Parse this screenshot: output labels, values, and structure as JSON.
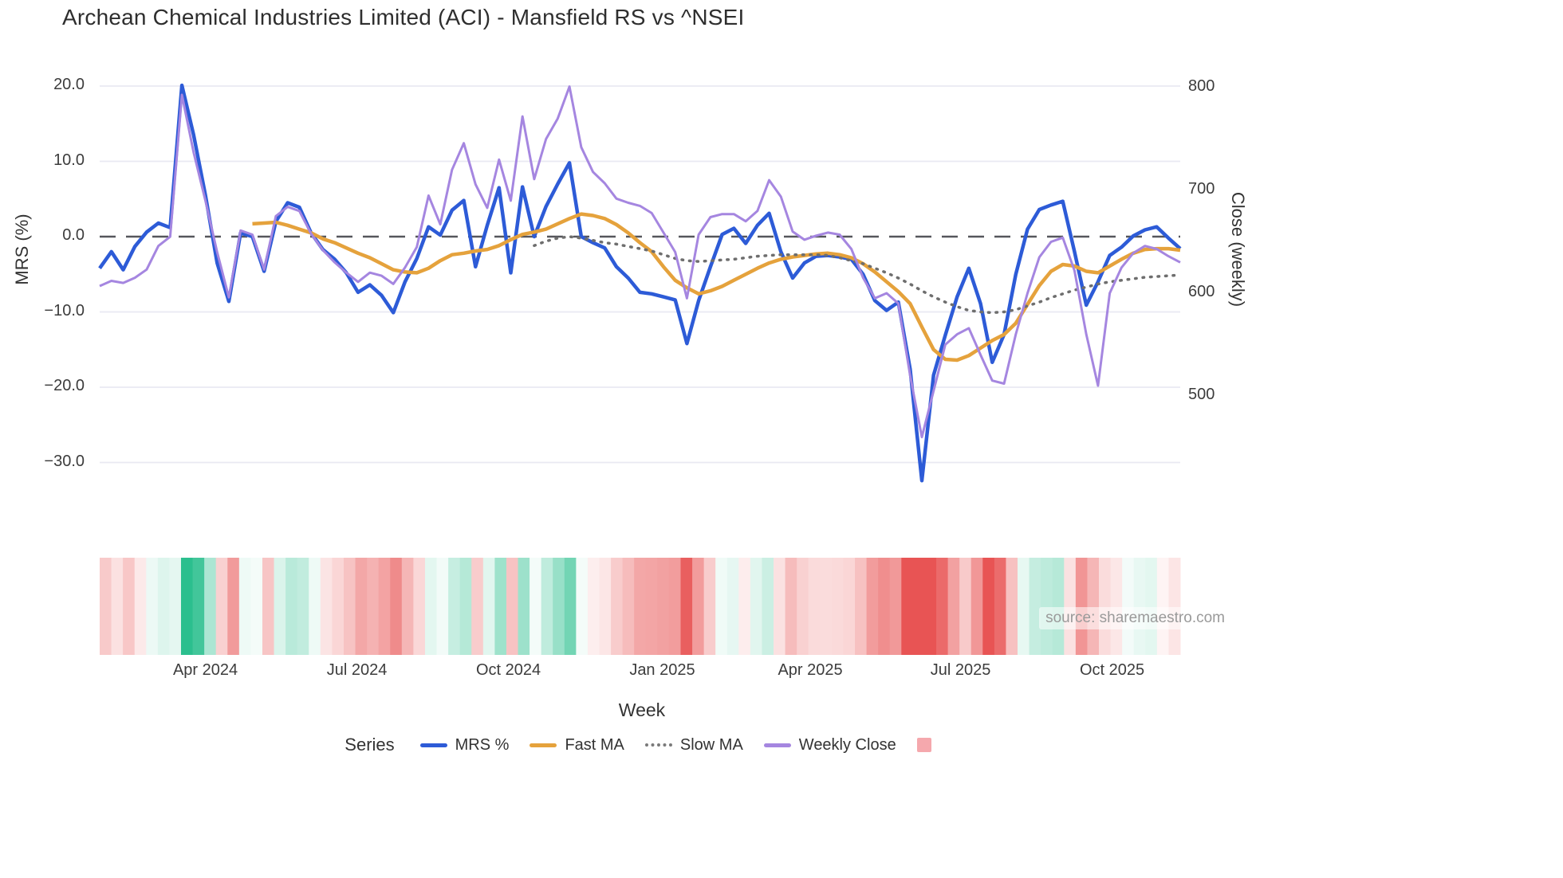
{
  "title": "Archean Chemical Industries Limited (ACI) - Mansfield RS vs ^NSEI",
  "source_text": "source: sharemaestro.com",
  "axes": {
    "left_label": "MRS (%)",
    "right_label": "Close (weekly)",
    "x_label": "Week",
    "left_ticks": [
      {
        "label": "20.0",
        "value": 20
      },
      {
        "label": "10.0",
        "value": 10
      },
      {
        "label": "0.0",
        "value": 0
      },
      {
        "label": "−10.0",
        "value": -10
      },
      {
        "label": "−20.0",
        "value": -20
      },
      {
        "label": "−30.0",
        "value": -30
      }
    ],
    "right_ticks": [
      {
        "label": "800",
        "value": 800
      },
      {
        "label": "700",
        "value": 700
      },
      {
        "label": "600",
        "value": 600
      },
      {
        "label": "500",
        "value": 500
      }
    ],
    "x_ticks": [
      {
        "label": "Apr 2024",
        "pos": 9.0
      },
      {
        "label": "Jul 2024",
        "pos": 21.9
      },
      {
        "label": "Oct 2024",
        "pos": 34.8
      },
      {
        "label": "Jan 2025",
        "pos": 47.9
      },
      {
        "label": "Apr 2025",
        "pos": 60.5
      },
      {
        "label": "Jul 2025",
        "pos": 73.3
      },
      {
        "label": "Oct 2025",
        "pos": 86.2
      }
    ]
  },
  "legend": {
    "series_title": "Series",
    "items": [
      {
        "label": "MRS %",
        "type": "line",
        "color": "#2d5bd7"
      },
      {
        "label": "Fast MA",
        "type": "line",
        "color": "#e5a23c"
      },
      {
        "label": "Slow MA",
        "type": "dotted",
        "color": "#7a7a7a"
      },
      {
        "label": "Weekly Close",
        "type": "line",
        "color": "#a586e0"
      },
      {
        "label": "",
        "type": "square",
        "color": "#f5a8ad"
      }
    ]
  },
  "chart_data": {
    "type": "line",
    "title": "Archean Chemical Industries Limited (ACI) - Mansfield RS vs ^NSEI",
    "xlabel": "Week",
    "ylabel_left": "MRS (%)",
    "ylabel_right": "Close (weekly)",
    "n_points": 93,
    "x_range_note": "weekly points, Feb 2024 to Nov 2025",
    "ylim_left": [
      -35,
      22
    ],
    "ylim_right": [
      460,
      810
    ],
    "grid": true,
    "zero_line": true,
    "legend_position": "bottom",
    "colors": {
      "mrs": "#2d5bd7",
      "fast_ma": "#e5a23c",
      "slow_ma": "#6e6e6e",
      "weekly_close": "#a586e0",
      "zero_line": "#55565c",
      "gridline": "#e9e9f2",
      "heat_positive": "#2bbf8e",
      "heat_negative": "#e85454"
    },
    "series": [
      {
        "name": "MRS %",
        "axis": "left",
        "style": "solid",
        "width": 4.5,
        "color": "#2d5bd7",
        "values": [
          -4.2,
          -2.0,
          -4.4,
          -1.3,
          0.6,
          1.8,
          1.2,
          20.1,
          13.5,
          5.5,
          -3.5,
          -8.6,
          0.5,
          0.0,
          -4.6,
          2.0,
          4.5,
          3.9,
          0.5,
          -1.7,
          -3.0,
          -4.8,
          -7.4,
          -6.4,
          -7.8,
          -10.1,
          -6.0,
          -2.9,
          1.3,
          0.2,
          3.5,
          4.8,
          -4.0,
          1.5,
          6.5,
          -4.8,
          6.6,
          0.0,
          4.0,
          7.0,
          9.8,
          0.0,
          -0.8,
          -1.5,
          -4.0,
          -5.5,
          -7.4,
          -7.6,
          -8.0,
          -8.4,
          -14.2,
          -8.5,
          -4.0,
          0.3,
          1.1,
          -0.9,
          1.5,
          3.1,
          -2.0,
          -5.5,
          -3.5,
          -2.6,
          -2.5,
          -2.7,
          -3.0,
          -5.0,
          -8.5,
          -9.8,
          -8.7,
          -17.6,
          -32.4,
          -18.4,
          -13.1,
          -8.0,
          -4.2,
          -8.9,
          -16.7,
          -13.0,
          -5.0,
          1.0,
          3.6,
          4.2,
          4.7,
          -2.0,
          -9.1,
          -6.0,
          -2.5,
          -1.4,
          0.1,
          0.9,
          1.3,
          -0.2,
          -1.6
        ]
      },
      {
        "name": "Fast MA",
        "axis": "left",
        "style": "solid",
        "width": 4.5,
        "color": "#e5a23c",
        "values": [
          null,
          null,
          null,
          null,
          null,
          null,
          null,
          null,
          null,
          null,
          null,
          null,
          null,
          1.7,
          1.8,
          1.9,
          1.5,
          1.0,
          0.5,
          -0.3,
          -0.8,
          -1.5,
          -2.2,
          -2.8,
          -3.6,
          -4.4,
          -4.7,
          -4.8,
          -4.2,
          -3.2,
          -2.4,
          -2.2,
          -1.9,
          -1.7,
          -1.2,
          -0.4,
          0.3,
          0.6,
          1.0,
          1.7,
          2.4,
          3.0,
          2.8,
          2.4,
          1.6,
          0.5,
          -0.8,
          -2.0,
          -4.0,
          -5.8,
          -6.8,
          -7.6,
          -7.2,
          -6.6,
          -5.8,
          -5.0,
          -4.2,
          -3.5,
          -3.0,
          -2.7,
          -2.5,
          -2.3,
          -2.2,
          -2.4,
          -2.8,
          -3.6,
          -4.7,
          -6.0,
          -7.3,
          -8.9,
          -12.0,
          -15.0,
          -16.3,
          -16.4,
          -15.8,
          -14.8,
          -13.8,
          -13.0,
          -11.5,
          -9.0,
          -6.5,
          -4.6,
          -3.7,
          -3.9,
          -4.6,
          -4.8,
          -3.9,
          -3.0,
          -2.2,
          -1.7,
          -1.6,
          -1.6,
          -1.8
        ]
      },
      {
        "name": "Slow MA",
        "axis": "left",
        "style": "dotted",
        "width": 3.5,
        "color": "#6e6e6e",
        "values": [
          null,
          null,
          null,
          null,
          null,
          null,
          null,
          null,
          null,
          null,
          null,
          null,
          null,
          null,
          null,
          null,
          null,
          null,
          null,
          null,
          null,
          null,
          null,
          null,
          null,
          null,
          null,
          null,
          null,
          null,
          null,
          null,
          null,
          null,
          null,
          null,
          null,
          -1.2,
          -0.6,
          -0.2,
          0.0,
          -0.2,
          -0.5,
          -0.8,
          -1.0,
          -1.3,
          -1.6,
          -1.9,
          -2.4,
          -2.9,
          -3.2,
          -3.3,
          -3.2,
          -3.1,
          -3.0,
          -2.8,
          -2.6,
          -2.5,
          -2.4,
          -2.4,
          -2.4,
          -2.4,
          -2.5,
          -2.8,
          -3.2,
          -3.6,
          -4.2,
          -4.8,
          -5.5,
          -6.3,
          -7.2,
          -8.0,
          -8.7,
          -9.3,
          -9.8,
          -10.0,
          -10.1,
          -10.0,
          -9.7,
          -9.2,
          -8.7,
          -8.1,
          -7.6,
          -7.1,
          -6.7,
          -6.3,
          -6.0,
          -5.8,
          -5.6,
          -5.4,
          -5.3,
          -5.2,
          -5.1
        ]
      },
      {
        "name": "Weekly Close",
        "axis": "right",
        "style": "solid",
        "width": 3,
        "color": "#a586e0",
        "values": [
          607,
          612,
          610,
          615,
          623,
          646,
          655,
          793,
          737,
          690,
          640,
          596,
          661,
          657,
          623,
          675,
          684,
          680,
          658,
          642,
          630,
          620,
          611,
          620,
          617,
          609,
          625,
          645,
          695,
          667,
          720,
          746,
          706,
          683,
          730,
          690,
          772,
          711,
          750,
          770,
          801,
          742,
          718,
          707,
          692,
          688,
          685,
          678,
          659,
          640,
          595,
          657,
          674,
          677,
          677,
          670,
          680,
          710,
          694,
          660,
          652,
          656,
          659,
          657,
          643,
          615,
          595,
          600,
          590,
          520,
          460,
          505,
          550,
          560,
          566,
          540,
          515,
          512,
          560,
          600,
          635,
          650,
          654,
          622,
          560,
          510,
          600,
          625,
          639,
          646,
          643,
          636,
          630
        ]
      }
    ],
    "heatmap": {
      "note": "weekly strip below chart, red negative / green positive intensity from MRS %",
      "derive_from": "MRS %",
      "max_abs": 16
    }
  }
}
